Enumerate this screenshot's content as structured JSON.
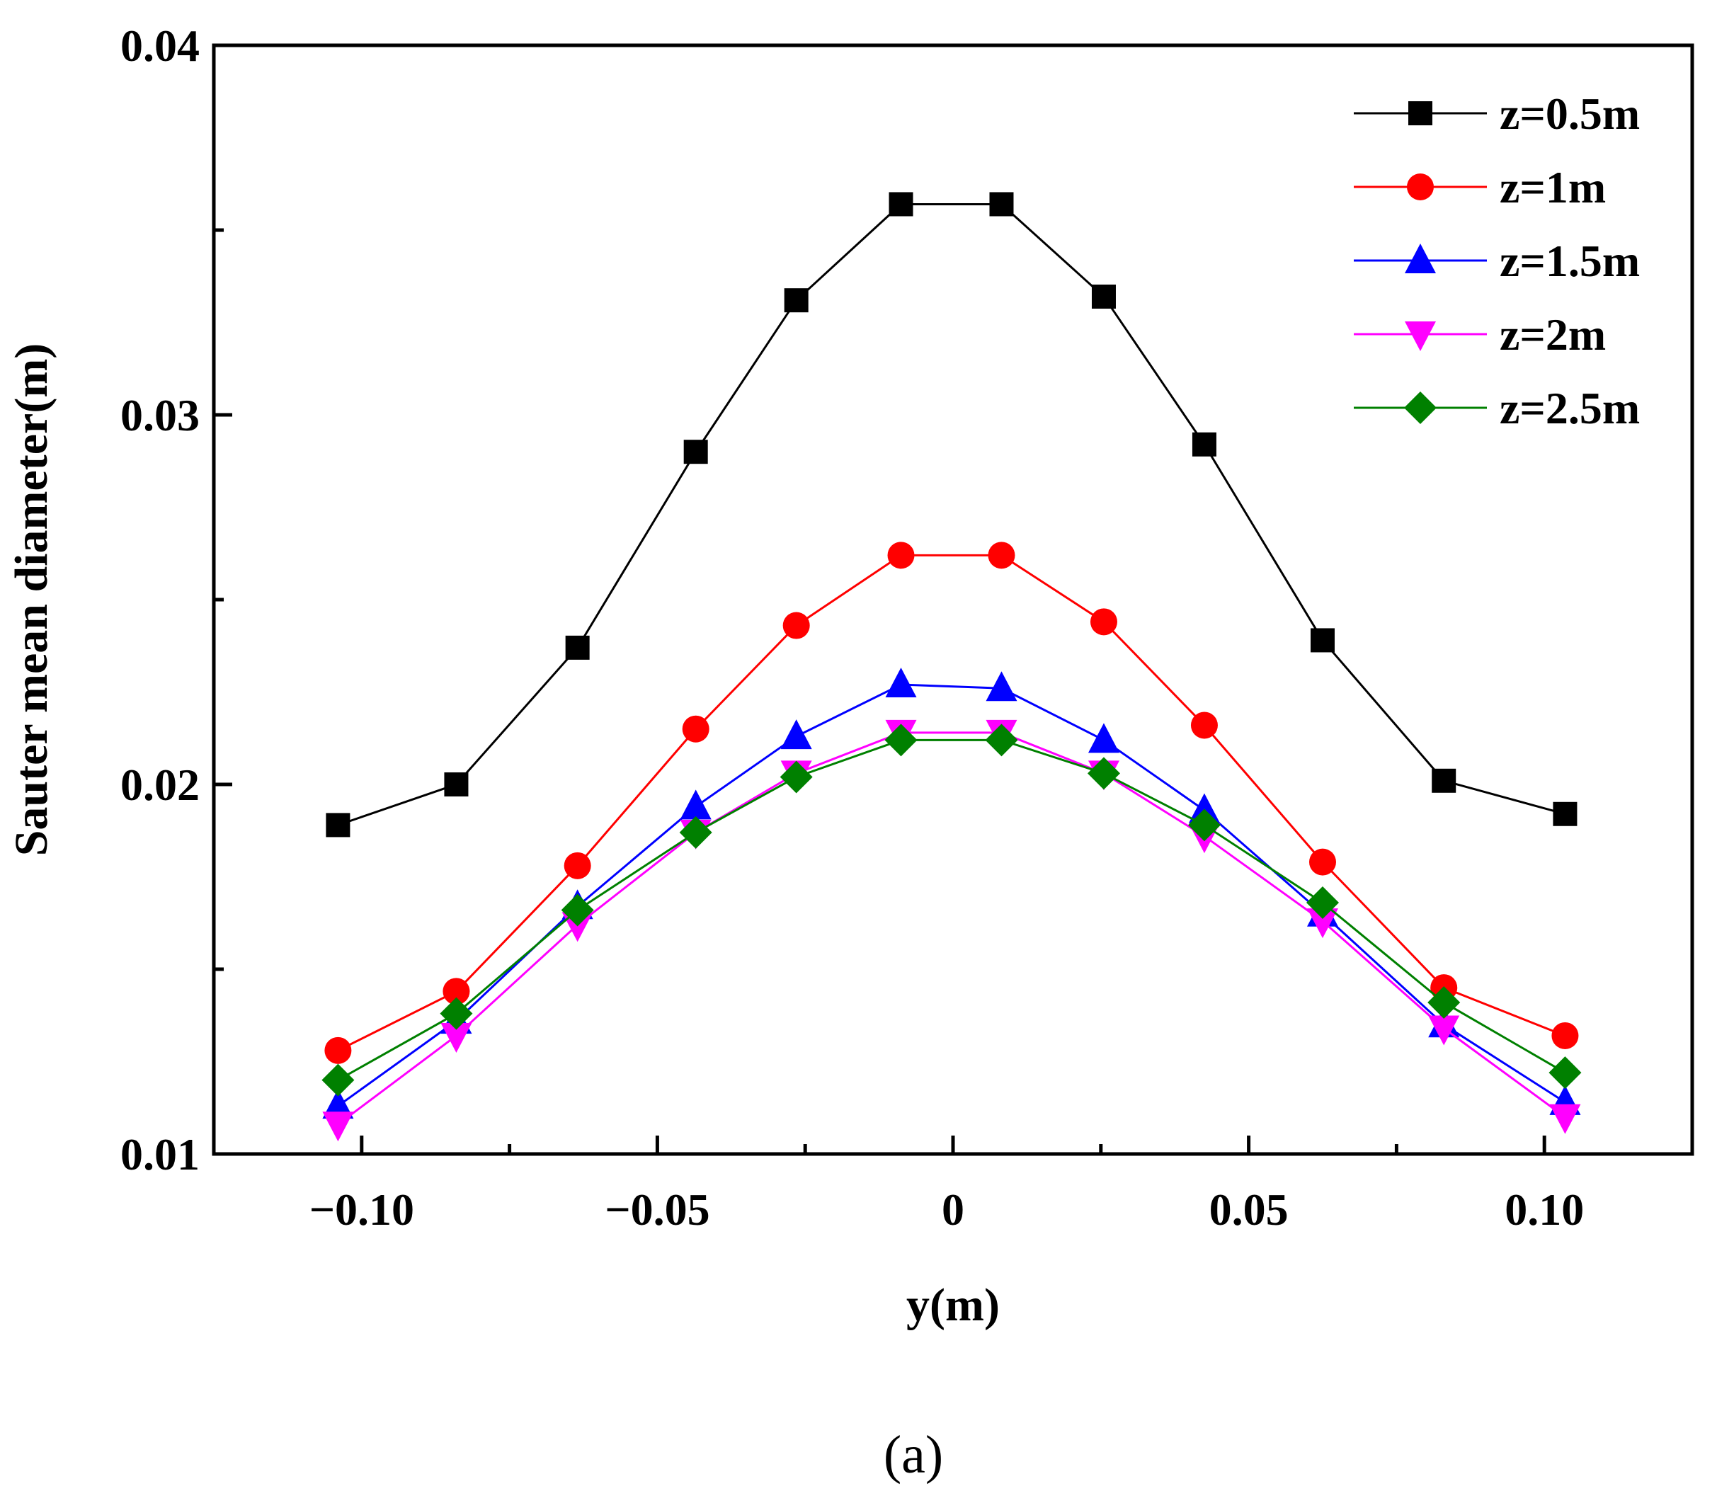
{
  "chart_data": {
    "type": "line",
    "title": "",
    "xlabel": "y(m)",
    "ylabel": "Sauter mean diameter(m)",
    "caption": "(a)",
    "xlim": [
      -0.125,
      0.125
    ],
    "ylim": [
      0.01,
      0.04
    ],
    "xticks": [
      -0.1,
      -0.05,
      0,
      0.05,
      0.1
    ],
    "xtick_labels": [
      "−0.10",
      "−0.05",
      "0",
      "0.05",
      "0.10"
    ],
    "yticks": [
      0.01,
      0.02,
      0.03,
      0.04
    ],
    "ytick_labels": [
      "0.01",
      "0.02",
      "0.03",
      "0.04"
    ],
    "grid": false,
    "legend_position": "top-right",
    "x": [
      -0.104,
      -0.084,
      -0.0635,
      -0.0435,
      -0.0265,
      -0.0088,
      0.0082,
      0.0255,
      0.0425,
      0.0625,
      0.083,
      0.1035
    ],
    "series": [
      {
        "name": "z=0.5m",
        "color": "#000000",
        "marker": "square",
        "values": [
          0.0189,
          0.02,
          0.0237,
          0.029,
          0.0331,
          0.0357,
          0.0357,
          0.0332,
          0.0292,
          0.0239,
          0.0201,
          0.0192
        ]
      },
      {
        "name": "z=1m",
        "color": "#ff0000",
        "marker": "circle",
        "values": [
          0.0128,
          0.0144,
          0.0178,
          0.0215,
          0.0243,
          0.0262,
          0.0262,
          0.0244,
          0.0216,
          0.0179,
          0.0145,
          0.0132
        ]
      },
      {
        "name": "z=1.5m",
        "color": "#0000ff",
        "marker": "triangle-up",
        "values": [
          0.0113,
          0.0136,
          0.0167,
          0.0194,
          0.0213,
          0.0227,
          0.0226,
          0.0212,
          0.0193,
          0.0165,
          0.0135,
          0.0114
        ]
      },
      {
        "name": "z=2m",
        "color": "#ff00ff",
        "marker": "triangle-down",
        "values": [
          0.0108,
          0.0132,
          0.0162,
          0.0187,
          0.0203,
          0.0214,
          0.0214,
          0.0203,
          0.0186,
          0.0163,
          0.0134,
          0.011
        ]
      },
      {
        "name": "z=2.5m",
        "color": "#008000",
        "marker": "diamond",
        "values": [
          0.012,
          0.0138,
          0.0166,
          0.0187,
          0.0202,
          0.0212,
          0.0212,
          0.0203,
          0.0189,
          0.0168,
          0.0141,
          0.0122
        ]
      }
    ]
  }
}
